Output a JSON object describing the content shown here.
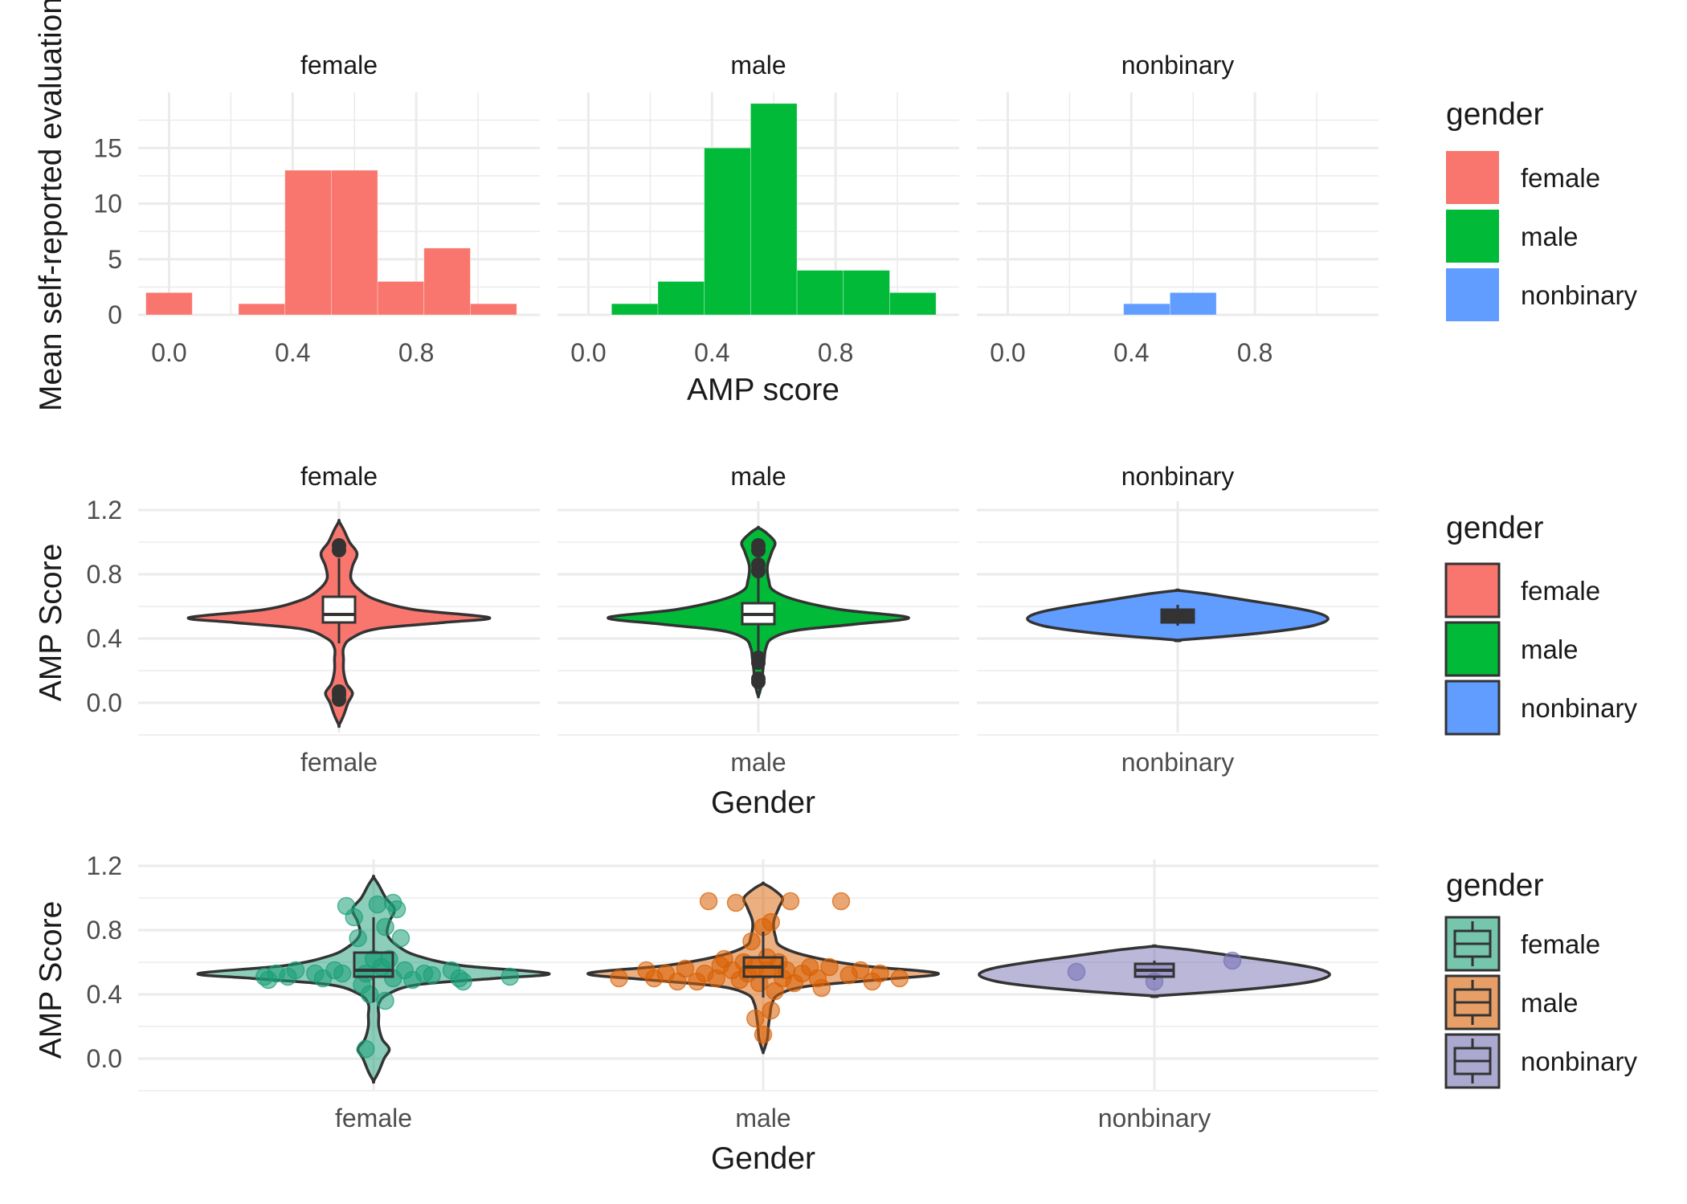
{
  "colors": {
    "female": "#F8766D",
    "male": "#00BA38",
    "nonbinary": "#619CFF",
    "female2": "#1B9E77",
    "male2": "#D95F02",
    "nonbinary2": "#7570B3",
    "grid": "#EBEBEB",
    "text": "#1A1A1A",
    "axis_text": "#4D4D4D",
    "outline": "#333333"
  },
  "chart_data": [
    {
      "type": "bar",
      "subtype": "faceted-histogram",
      "facets": [
        "female",
        "male",
        "nonbinary"
      ],
      "xlabel": "AMP score",
      "ylabel": "Mean self-reported evaluation",
      "xlim": [
        -0.1,
        1.2
      ],
      "ylim": [
        0,
        20
      ],
      "xticks": [
        "0.0",
        "0.4",
        "0.8"
      ],
      "yticks": [
        "0",
        "5",
        "10",
        "15"
      ],
      "bin_width": 0.15,
      "bin_starts": [
        -0.075,
        0.075,
        0.225,
        0.375,
        0.525,
        0.675,
        0.825,
        0.975
      ],
      "series": [
        {
          "name": "female",
          "values": [
            2,
            0,
            1,
            13,
            13,
            3,
            6,
            1
          ]
        },
        {
          "name": "male",
          "values": [
            0,
            1,
            3,
            15,
            19,
            4,
            4,
            2
          ]
        },
        {
          "name": "nonbinary",
          "values": [
            0,
            0,
            0,
            1,
            2,
            0,
            0,
            0
          ]
        }
      ],
      "legend": {
        "title": "gender",
        "position": "right",
        "entries": [
          "female",
          "male",
          "nonbinary"
        ]
      },
      "grid": true
    },
    {
      "type": "violin",
      "subtype": "faceted-violin-box",
      "facets": [
        "female",
        "male",
        "nonbinary"
      ],
      "xlabel": "Gender",
      "ylabel": "AMP Score",
      "ylim": [
        -0.2,
        1.2
      ],
      "yticks": [
        "0.0",
        "0.4",
        "0.8",
        "1.2"
      ],
      "series": [
        {
          "name": "female",
          "box": {
            "q1": 0.5,
            "median": 0.55,
            "q3": 0.66,
            "wmin": 0.37,
            "wmax": 0.9
          },
          "outliers": [
            0.95,
            0.98,
            0.07,
            0.05,
            0.02
          ]
        },
        {
          "name": "male",
          "box": {
            "q1": 0.49,
            "median": 0.55,
            "q3": 0.62,
            "wmin": 0.3,
            "wmax": 0.78
          },
          "outliers": [
            0.82,
            0.86,
            0.95,
            0.98,
            0.28,
            0.25,
            0.15,
            0.13
          ]
        },
        {
          "name": "nonbinary",
          "box": {
            "q1": 0.5,
            "median": 0.55,
            "q3": 0.58,
            "wmin": 0.48,
            "wmax": 0.61
          },
          "outliers": []
        }
      ],
      "legend": {
        "title": "gender",
        "position": "right",
        "entries": [
          "female",
          "male",
          "nonbinary"
        ]
      },
      "grid": true
    },
    {
      "type": "violin",
      "subtype": "violin-box-jitter",
      "categories": [
        "female",
        "male",
        "nonbinary"
      ],
      "xlabel": "Gender",
      "ylabel": "AMP Score",
      "ylim": [
        -0.2,
        1.2
      ],
      "yticks": [
        "0.0",
        "0.4",
        "0.8",
        "1.2"
      ],
      "series": [
        {
          "name": "female",
          "box": {
            "q1": 0.51,
            "median": 0.55,
            "q3": 0.66,
            "wmin": 0.35,
            "wmax": 0.88
          }
        },
        {
          "name": "male",
          "box": {
            "q1": 0.51,
            "median": 0.57,
            "q3": 0.63,
            "wmin": 0.38,
            "wmax": 0.79
          }
        },
        {
          "name": "nonbinary",
          "box": {
            "q1": 0.51,
            "median": 0.55,
            "q3": 0.59,
            "wmin": 0.49,
            "wmax": 0.61
          }
        }
      ],
      "points": [
        {
          "g": "female",
          "x": -0.28,
          "y": 0.51
        },
        {
          "g": "female",
          "x": -0.25,
          "y": 0.53
        },
        {
          "g": "female",
          "x": -0.27,
          "y": 0.49
        },
        {
          "g": "female",
          "x": -0.22,
          "y": 0.51
        },
        {
          "g": "female",
          "x": -0.2,
          "y": 0.55
        },
        {
          "g": "female",
          "x": -0.15,
          "y": 0.53
        },
        {
          "g": "female",
          "x": -0.13,
          "y": 0.5
        },
        {
          "g": "female",
          "x": -0.1,
          "y": 0.55
        },
        {
          "g": "female",
          "x": -0.08,
          "y": 0.53
        },
        {
          "g": "female",
          "x": -0.07,
          "y": 0.95
        },
        {
          "g": "female",
          "x": -0.05,
          "y": 0.88
        },
        {
          "g": "female",
          "x": -0.04,
          "y": 0.75
        },
        {
          "g": "female",
          "x": -0.03,
          "y": 0.46
        },
        {
          "g": "female",
          "x": -0.02,
          "y": 0.53
        },
        {
          "g": "female",
          "x": -0.02,
          "y": 0.06
        },
        {
          "g": "female",
          "x": -0.01,
          "y": 0.4
        },
        {
          "g": "female",
          "x": 0.0,
          "y": 0.62
        },
        {
          "g": "female",
          "x": 0.01,
          "y": 0.96
        },
        {
          "g": "female",
          "x": 0.02,
          "y": 0.57
        },
        {
          "g": "female",
          "x": 0.03,
          "y": 0.82
        },
        {
          "g": "female",
          "x": 0.03,
          "y": 0.36
        },
        {
          "g": "female",
          "x": 0.04,
          "y": 0.62
        },
        {
          "g": "female",
          "x": 0.05,
          "y": 0.97
        },
        {
          "g": "female",
          "x": 0.05,
          "y": 0.5
        },
        {
          "g": "female",
          "x": 0.06,
          "y": 0.93
        },
        {
          "g": "female",
          "x": 0.07,
          "y": 0.75
        },
        {
          "g": "female",
          "x": 0.08,
          "y": 0.55
        },
        {
          "g": "female",
          "x": 0.1,
          "y": 0.49
        },
        {
          "g": "female",
          "x": 0.13,
          "y": 0.53
        },
        {
          "g": "female",
          "x": 0.15,
          "y": 0.52
        },
        {
          "g": "female",
          "x": 0.2,
          "y": 0.55
        },
        {
          "g": "female",
          "x": 0.22,
          "y": 0.5
        },
        {
          "g": "female",
          "x": 0.23,
          "y": 0.48
        },
        {
          "g": "female",
          "x": 0.35,
          "y": 0.51
        },
        {
          "g": "male",
          "x": -0.37,
          "y": 0.5
        },
        {
          "g": "male",
          "x": -0.3,
          "y": 0.55
        },
        {
          "g": "male",
          "x": -0.28,
          "y": 0.5
        },
        {
          "g": "male",
          "x": -0.25,
          "y": 0.53
        },
        {
          "g": "male",
          "x": -0.22,
          "y": 0.48
        },
        {
          "g": "male",
          "x": -0.2,
          "y": 0.56
        },
        {
          "g": "male",
          "x": -0.17,
          "y": 0.48
        },
        {
          "g": "male",
          "x": -0.15,
          "y": 0.53
        },
        {
          "g": "male",
          "x": -0.14,
          "y": 0.98
        },
        {
          "g": "male",
          "x": -0.12,
          "y": 0.5
        },
        {
          "g": "male",
          "x": -0.11,
          "y": 0.58
        },
        {
          "g": "male",
          "x": -0.1,
          "y": 0.62
        },
        {
          "g": "male",
          "x": -0.08,
          "y": 0.55
        },
        {
          "g": "male",
          "x": -0.07,
          "y": 0.97
        },
        {
          "g": "male",
          "x": -0.06,
          "y": 0.49
        },
        {
          "g": "male",
          "x": -0.05,
          "y": 0.6
        },
        {
          "g": "male",
          "x": -0.04,
          "y": 0.53
        },
        {
          "g": "male",
          "x": -0.03,
          "y": 0.73
        },
        {
          "g": "male",
          "x": -0.02,
          "y": 0.25
        },
        {
          "g": "male",
          "x": -0.02,
          "y": 0.57
        },
        {
          "g": "male",
          "x": -0.01,
          "y": 0.47
        },
        {
          "g": "male",
          "x": 0.0,
          "y": 0.82
        },
        {
          "g": "male",
          "x": 0.0,
          "y": 0.15
        },
        {
          "g": "male",
          "x": 0.01,
          "y": 0.63
        },
        {
          "g": "male",
          "x": 0.01,
          "y": 0.55
        },
        {
          "g": "male",
          "x": 0.02,
          "y": 0.85
        },
        {
          "g": "male",
          "x": 0.02,
          "y": 0.3
        },
        {
          "g": "male",
          "x": 0.03,
          "y": 0.42
        },
        {
          "g": "male",
          "x": 0.04,
          "y": 0.6
        },
        {
          "g": "male",
          "x": 0.05,
          "y": 0.5
        },
        {
          "g": "male",
          "x": 0.06,
          "y": 0.55
        },
        {
          "g": "male",
          "x": 0.07,
          "y": 0.98
        },
        {
          "g": "male",
          "x": 0.08,
          "y": 0.47
        },
        {
          "g": "male",
          "x": 0.1,
          "y": 0.53
        },
        {
          "g": "male",
          "x": 0.12,
          "y": 0.57
        },
        {
          "g": "male",
          "x": 0.14,
          "y": 0.5
        },
        {
          "g": "male",
          "x": 0.15,
          "y": 0.44
        },
        {
          "g": "male",
          "x": 0.17,
          "y": 0.57
        },
        {
          "g": "male",
          "x": 0.2,
          "y": 0.98
        },
        {
          "g": "male",
          "x": 0.22,
          "y": 0.52
        },
        {
          "g": "male",
          "x": 0.25,
          "y": 0.55
        },
        {
          "g": "male",
          "x": 0.28,
          "y": 0.48
        },
        {
          "g": "male",
          "x": 0.3,
          "y": 0.53
        },
        {
          "g": "male",
          "x": 0.35,
          "y": 0.5
        },
        {
          "g": "nonbinary",
          "x": -0.2,
          "y": 0.54
        },
        {
          "g": "nonbinary",
          "x": 0.0,
          "y": 0.48
        },
        {
          "g": "nonbinary",
          "x": 0.2,
          "y": 0.61
        }
      ],
      "legend": {
        "title": "gender",
        "position": "right",
        "entries": [
          "female",
          "male",
          "nonbinary"
        ]
      },
      "grid": true
    }
  ]
}
